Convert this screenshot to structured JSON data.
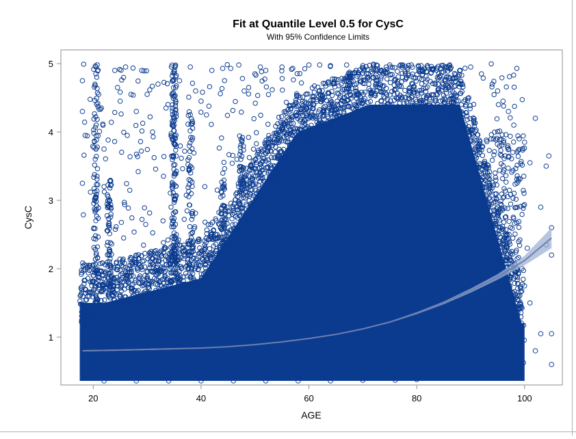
{
  "chart_data": {
    "type": "scatter",
    "title": "Fit at Quantile Level 0.5 for CysC",
    "subtitle": "With 95% Confidence Limits",
    "xlabel": "AGE",
    "ylabel": "CysC",
    "xlim": [
      14,
      107
    ],
    "ylim": [
      0.3,
      5.2
    ],
    "x_ticks": [
      20,
      40,
      60,
      80,
      100
    ],
    "y_ticks": [
      1,
      2,
      3,
      4,
      5
    ],
    "grid": false,
    "legend": "none",
    "colors": {
      "marker": "#0b3b8f",
      "fit_line": "#6d7fae",
      "confidence_band": "#9fb1d6",
      "frame": "#8c8c8c",
      "text": "#000000"
    },
    "series": [
      {
        "kind": "fit",
        "x": [
          18,
          25,
          30,
          35,
          40,
          45,
          50,
          55,
          60,
          65,
          70,
          75,
          80,
          85,
          90,
          95,
          100,
          105
        ],
        "y": [
          0.8,
          0.81,
          0.82,
          0.83,
          0.84,
          0.86,
          0.89,
          0.93,
          0.98,
          1.04,
          1.12,
          1.22,
          1.35,
          1.5,
          1.68,
          1.88,
          2.12,
          2.45
        ],
        "lower": [
          0.79,
          0.8,
          0.81,
          0.82,
          0.835,
          0.855,
          0.885,
          0.925,
          0.975,
          1.035,
          1.115,
          1.21,
          1.335,
          1.48,
          1.65,
          1.84,
          2.05,
          2.3
        ],
        "upper": [
          0.81,
          0.82,
          0.83,
          0.84,
          0.845,
          0.865,
          0.895,
          0.935,
          0.985,
          1.045,
          1.125,
          1.23,
          1.365,
          1.52,
          1.71,
          1.92,
          2.19,
          2.6
        ]
      }
    ],
    "outliers": [
      [
        18,
        4.75
      ],
      [
        18,
        4.3
      ],
      [
        18,
        3.25
      ],
      [
        18.5,
        3.95
      ],
      [
        19.5,
        3.12
      ],
      [
        20.5,
        4.95
      ],
      [
        20.5,
        4.85
      ],
      [
        21,
        4.55
      ],
      [
        21.5,
        4.35
      ],
      [
        22,
        3.75
      ],
      [
        22,
        3.2
      ],
      [
        24,
        4.9
      ],
      [
        24.5,
        4.65
      ],
      [
        25,
        4.45
      ],
      [
        26,
        4.95
      ],
      [
        27,
        4.55
      ],
      [
        28,
        4.3
      ],
      [
        29,
        4.9
      ],
      [
        30,
        4.55
      ],
      [
        31,
        4.0
      ],
      [
        32,
        4.7
      ],
      [
        33.5,
        4.35
      ],
      [
        34.5,
        4.95
      ],
      [
        35,
        4.9
      ],
      [
        36,
        4.75
      ],
      [
        38,
        4.95
      ],
      [
        39,
        4.6
      ],
      [
        40,
        4.45
      ],
      [
        41,
        4.25
      ],
      [
        42,
        4.9
      ],
      [
        44,
        4.93
      ],
      [
        45.5,
        4.93
      ],
      [
        47,
        4.98
      ],
      [
        48,
        4.6
      ],
      [
        50,
        4.85
      ],
      [
        51,
        4.95
      ],
      [
        52,
        4.9
      ],
      [
        55,
        4.95
      ],
      [
        57,
        4.93
      ],
      [
        60,
        4.98
      ],
      [
        62,
        4.98
      ],
      [
        64,
        4.97
      ],
      [
        67,
        4.98
      ],
      [
        70,
        4.97
      ],
      [
        72,
        4.99
      ],
      [
        75,
        4.98
      ],
      [
        77,
        4.98
      ],
      [
        79,
        4.98
      ],
      [
        82,
        4.97
      ],
      [
        84,
        4.96
      ],
      [
        86,
        4.97
      ],
      [
        88,
        4.9
      ],
      [
        90,
        4.95
      ],
      [
        92,
        4.85
      ],
      [
        94,
        4.7
      ],
      [
        95,
        4.6
      ],
      [
        96,
        4.45
      ],
      [
        97,
        4.3
      ],
      [
        98,
        4.1
      ],
      [
        99,
        3.9
      ],
      [
        100,
        3.85
      ],
      [
        101,
        3.55
      ],
      [
        102,
        4.2
      ],
      [
        103,
        2.9
      ],
      [
        104,
        3.5
      ],
      [
        104.5,
        3.65
      ],
      [
        105,
        2.6
      ],
      [
        105,
        2.2
      ],
      [
        104,
        2.35
      ],
      [
        103,
        1.05
      ],
      [
        105,
        1.05
      ],
      [
        105,
        0.6
      ],
      [
        102,
        0.8
      ],
      [
        101,
        1.5
      ],
      [
        100,
        1.75
      ],
      [
        99.5,
        2.0
      ],
      [
        100.5,
        2.3
      ],
      [
        98,
        1.3
      ],
      [
        98.5,
        0.95
      ],
      [
        97,
        0.85
      ],
      [
        94,
        0.55
      ],
      [
        91,
        0.5
      ],
      [
        88,
        0.4
      ],
      [
        85,
        0.4
      ],
      [
        80,
        0.38
      ],
      [
        76,
        0.37
      ],
      [
        70,
        0.37
      ],
      [
        64,
        0.36
      ],
      [
        58,
        0.36
      ],
      [
        52,
        0.36
      ],
      [
        46,
        0.36
      ],
      [
        40,
        0.36
      ],
      [
        34,
        0.36
      ],
      [
        28,
        0.36
      ],
      [
        22,
        0.36
      ]
    ]
  }
}
